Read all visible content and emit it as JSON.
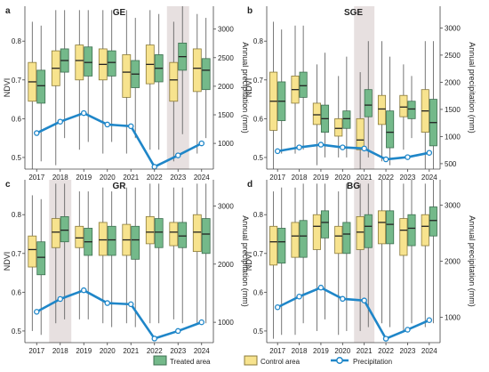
{
  "colors": {
    "treated_fill": "#74b98a",
    "treated_stroke": "#3d6f50",
    "control_fill": "#f7e38e",
    "control_stroke": "#8a7a3a",
    "precipitation": "#1f86c8",
    "shade": "#e7e0e0",
    "whisker": "#555555",
    "axis": "#444444",
    "text": "#222222"
  },
  "legend": {
    "treated": "Treated area",
    "control": "Control area",
    "precipitation": "Precipitation"
  },
  "chart_data": [
    {
      "type": "box",
      "panel_letter": "a",
      "title": "GE",
      "ylabel": "NDVI",
      "y2label": "Annual precipitation (mm)",
      "categories": [
        "2017",
        "2018",
        "2019",
        "2020",
        "2021",
        "2022",
        "2023",
        "2024"
      ],
      "ylim": [
        0.47,
        0.89
      ],
      "yticks": [
        0.5,
        0.6,
        0.7,
        0.8
      ],
      "y2lim": [
        550,
        3400
      ],
      "y2ticks": [
        1000,
        1500,
        2000,
        2500,
        3000
      ],
      "y2ticklabels": [
        "1000",
        "1500",
        "2000",
        "2500",
        "3000"
      ],
      "highlight": "2023",
      "control": [
        {
          "whislo": 0.47,
          "q1": 0.645,
          "med": 0.695,
          "q3": 0.745,
          "whishi": 0.85
        },
        {
          "whislo": 0.48,
          "q1": 0.685,
          "med": 0.73,
          "q3": 0.775,
          "whishi": 0.88
        },
        {
          "whislo": 0.52,
          "q1": 0.7,
          "med": 0.75,
          "q3": 0.79,
          "whishi": 0.88
        },
        {
          "whislo": 0.51,
          "q1": 0.7,
          "med": 0.74,
          "q3": 0.78,
          "whishi": 0.88
        },
        {
          "whislo": 0.51,
          "q1": 0.655,
          "med": 0.72,
          "q3": 0.765,
          "whishi": 0.88
        },
        {
          "whislo": 0.52,
          "q1": 0.69,
          "med": 0.74,
          "q3": 0.79,
          "whishi": 0.88
        },
        {
          "whislo": 0.49,
          "q1": 0.645,
          "med": 0.7,
          "q3": 0.745,
          "whishi": 0.85
        },
        {
          "whislo": 0.51,
          "q1": 0.67,
          "med": 0.73,
          "q3": 0.78,
          "whishi": 0.87
        }
      ],
      "treated": [
        {
          "whislo": 0.49,
          "q1": 0.64,
          "med": 0.685,
          "q3": 0.725,
          "whishi": 0.84
        },
        {
          "whislo": 0.55,
          "q1": 0.72,
          "med": 0.75,
          "q3": 0.78,
          "whishi": 0.88
        },
        {
          "whislo": 0.54,
          "q1": 0.71,
          "med": 0.745,
          "q3": 0.785,
          "whishi": 0.88
        },
        {
          "whislo": 0.54,
          "q1": 0.71,
          "med": 0.745,
          "q3": 0.775,
          "whishi": 0.88
        },
        {
          "whislo": 0.55,
          "q1": 0.68,
          "med": 0.715,
          "q3": 0.75,
          "whishi": 0.86
        },
        {
          "whislo": 0.52,
          "q1": 0.695,
          "med": 0.73,
          "q3": 0.765,
          "whishi": 0.87
        },
        {
          "whislo": 0.56,
          "q1": 0.725,
          "med": 0.76,
          "q3": 0.795,
          "whishi": 0.89
        },
        {
          "whislo": 0.55,
          "q1": 0.675,
          "med": 0.725,
          "q3": 0.755,
          "whishi": 0.86
        }
      ],
      "precipitation": [
        1180,
        1380,
        1530,
        1330,
        1300,
        590,
        790,
        1000
      ]
    },
    {
      "type": "box",
      "panel_letter": "b",
      "title": "SGE",
      "ylabel": "NDVI",
      "y2label": "Annual precipitation (mm)",
      "categories": [
        "2017",
        "2018",
        "2019",
        "2020",
        "2021",
        "2022",
        "2023",
        "2024"
      ],
      "ylim": [
        0.47,
        0.89
      ],
      "yticks": [
        0.5,
        0.6,
        0.7,
        0.8
      ],
      "y2lim": [
        400,
        3400
      ],
      "y2ticks": [
        500,
        1000,
        1500,
        2000,
        2500,
        3000
      ],
      "y2ticklabels": [
        "500",
        "1000",
        "1500",
        "2000",
        "2500",
        "3000"
      ],
      "highlight": "2021",
      "control": [
        {
          "whislo": 0.47,
          "q1": 0.57,
          "med": 0.645,
          "q3": 0.72,
          "whishi": 0.85
        },
        {
          "whislo": 0.51,
          "q1": 0.64,
          "med": 0.675,
          "q3": 0.71,
          "whishi": 0.84
        },
        {
          "whislo": 0.48,
          "q1": 0.585,
          "med": 0.61,
          "q3": 0.64,
          "whishi": 0.74
        },
        {
          "whislo": 0.5,
          "q1": 0.555,
          "med": 0.575,
          "q3": 0.6,
          "whishi": 0.71
        },
        {
          "whislo": 0.47,
          "q1": 0.52,
          "med": 0.545,
          "q3": 0.6,
          "whishi": 0.72
        },
        {
          "whislo": 0.49,
          "q1": 0.585,
          "med": 0.625,
          "q3": 0.66,
          "whishi": 0.8
        },
        {
          "whislo": 0.52,
          "q1": 0.605,
          "med": 0.63,
          "q3": 0.66,
          "whishi": 0.74
        },
        {
          "whislo": 0.47,
          "q1": 0.565,
          "med": 0.62,
          "q3": 0.675,
          "whishi": 0.8
        }
      ],
      "treated": [
        {
          "whislo": 0.51,
          "q1": 0.595,
          "med": 0.645,
          "q3": 0.695,
          "whishi": 0.83
        },
        {
          "whislo": 0.52,
          "q1": 0.655,
          "med": 0.685,
          "q3": 0.72,
          "whishi": 0.84
        },
        {
          "whislo": 0.5,
          "q1": 0.565,
          "med": 0.6,
          "q3": 0.635,
          "whishi": 0.77
        },
        {
          "whislo": 0.5,
          "q1": 0.575,
          "med": 0.6,
          "q3": 0.62,
          "whishi": 0.76
        },
        {
          "whislo": 0.5,
          "q1": 0.605,
          "med": 0.635,
          "q3": 0.675,
          "whishi": 0.8
        },
        {
          "whislo": 0.48,
          "q1": 0.525,
          "med": 0.565,
          "q3": 0.62,
          "whishi": 0.76
        },
        {
          "whislo": 0.55,
          "q1": 0.6,
          "med": 0.625,
          "q3": 0.645,
          "whishi": 0.71
        },
        {
          "whislo": 0.47,
          "q1": 0.53,
          "med": 0.59,
          "q3": 0.65,
          "whishi": 0.8
        }
      ],
      "precipitation": [
        730,
        800,
        850,
        800,
        780,
        580,
        620,
        700
      ]
    },
    {
      "type": "box",
      "panel_letter": "c",
      "title": "GR",
      "ylabel": "NDVI",
      "y2label": "Annual precipitation (mm)",
      "categories": [
        "2017",
        "2018",
        "2019",
        "2020",
        "2021",
        "2022",
        "2023",
        "2024"
      ],
      "ylim": [
        0.47,
        0.89
      ],
      "yticks": [
        0.5,
        0.6,
        0.7,
        0.8
      ],
      "y2lim": [
        650,
        3450
      ],
      "y2ticks": [
        1000,
        2000,
        3000
      ],
      "y2ticklabels": [
        "1000",
        "2000",
        "3000"
      ],
      "highlight": "2018",
      "control": [
        {
          "whislo": 0.5,
          "q1": 0.665,
          "med": 0.71,
          "q3": 0.745,
          "whishi": 0.85
        },
        {
          "whislo": 0.52,
          "q1": 0.715,
          "med": 0.755,
          "q3": 0.79,
          "whishi": 0.88
        },
        {
          "whislo": 0.53,
          "q1": 0.715,
          "med": 0.74,
          "q3": 0.77,
          "whishi": 0.86
        },
        {
          "whislo": 0.52,
          "q1": 0.695,
          "med": 0.735,
          "q3": 0.78,
          "whishi": 0.87
        },
        {
          "whislo": 0.52,
          "q1": 0.695,
          "med": 0.735,
          "q3": 0.775,
          "whishi": 0.87
        },
        {
          "whislo": 0.52,
          "q1": 0.725,
          "med": 0.755,
          "q3": 0.795,
          "whishi": 0.88
        },
        {
          "whislo": 0.53,
          "q1": 0.72,
          "med": 0.755,
          "q3": 0.78,
          "whishi": 0.87
        },
        {
          "whislo": 0.52,
          "q1": 0.705,
          "med": 0.755,
          "q3": 0.8,
          "whishi": 0.88
        }
      ],
      "treated": [
        {
          "whislo": 0.49,
          "q1": 0.645,
          "med": 0.69,
          "q3": 0.73,
          "whishi": 0.84
        },
        {
          "whislo": 0.53,
          "q1": 0.73,
          "med": 0.76,
          "q3": 0.795,
          "whishi": 0.88
        },
        {
          "whislo": 0.53,
          "q1": 0.695,
          "med": 0.73,
          "q3": 0.765,
          "whishi": 0.86
        },
        {
          "whislo": 0.51,
          "q1": 0.695,
          "med": 0.735,
          "q3": 0.77,
          "whishi": 0.86
        },
        {
          "whislo": 0.51,
          "q1": 0.685,
          "med": 0.735,
          "q3": 0.77,
          "whishi": 0.87
        },
        {
          "whislo": 0.52,
          "q1": 0.715,
          "med": 0.755,
          "q3": 0.79,
          "whishi": 0.88
        },
        {
          "whislo": 0.52,
          "q1": 0.715,
          "med": 0.745,
          "q3": 0.78,
          "whishi": 0.87
        },
        {
          "whislo": 0.52,
          "q1": 0.7,
          "med": 0.75,
          "q3": 0.79,
          "whishi": 0.88
        }
      ],
      "precipitation": [
        1180,
        1400,
        1550,
        1330,
        1310,
        720,
        850,
        1000
      ]
    },
    {
      "type": "box",
      "panel_letter": "d",
      "title": "BG",
      "ylabel": "NDVI",
      "y2label": "Annual precipitation (mm)",
      "categories": [
        "2017",
        "2018",
        "2019",
        "2020",
        "2021",
        "2022",
        "2023",
        "2024"
      ],
      "ylim": [
        0.47,
        0.89
      ],
      "yticks": [
        0.5,
        0.6,
        0.7,
        0.8
      ],
      "y2lim": [
        550,
        3450
      ],
      "y2ticks": [
        1000,
        2000,
        3000
      ],
      "y2ticklabels": [
        "1000",
        "2000",
        "3000"
      ],
      "highlight": "2021",
      "control": [
        {
          "whislo": 0.48,
          "q1": 0.67,
          "med": 0.73,
          "q3": 0.77,
          "whishi": 0.86
        },
        {
          "whislo": 0.49,
          "q1": 0.69,
          "med": 0.745,
          "q3": 0.78,
          "whishi": 0.87
        },
        {
          "whislo": 0.5,
          "q1": 0.71,
          "med": 0.77,
          "q3": 0.8,
          "whishi": 0.88
        },
        {
          "whislo": 0.49,
          "q1": 0.7,
          "med": 0.745,
          "q3": 0.77,
          "whishi": 0.86
        },
        {
          "whislo": 0.5,
          "q1": 0.71,
          "med": 0.755,
          "q3": 0.795,
          "whishi": 0.88
        },
        {
          "whislo": 0.52,
          "q1": 0.725,
          "med": 0.78,
          "q3": 0.81,
          "whishi": 0.89
        },
        {
          "whislo": 0.5,
          "q1": 0.695,
          "med": 0.76,
          "q3": 0.79,
          "whishi": 0.88
        },
        {
          "whislo": 0.51,
          "q1": 0.72,
          "med": 0.77,
          "q3": 0.8,
          "whishi": 0.88
        }
      ],
      "treated": [
        {
          "whislo": 0.49,
          "q1": 0.675,
          "med": 0.73,
          "q3": 0.765,
          "whishi": 0.87
        },
        {
          "whislo": 0.52,
          "q1": 0.69,
          "med": 0.745,
          "q3": 0.785,
          "whishi": 0.88
        },
        {
          "whislo": 0.53,
          "q1": 0.74,
          "med": 0.78,
          "q3": 0.81,
          "whishi": 0.88
        },
        {
          "whislo": 0.5,
          "q1": 0.7,
          "med": 0.75,
          "q3": 0.78,
          "whishi": 0.88
        },
        {
          "whislo": 0.51,
          "q1": 0.715,
          "med": 0.77,
          "q3": 0.8,
          "whishi": 0.88
        },
        {
          "whislo": 0.51,
          "q1": 0.725,
          "med": 0.775,
          "q3": 0.81,
          "whishi": 0.89
        },
        {
          "whislo": 0.52,
          "q1": 0.72,
          "med": 0.765,
          "q3": 0.8,
          "whishi": 0.89
        },
        {
          "whislo": 0.52,
          "q1": 0.745,
          "med": 0.785,
          "q3": 0.82,
          "whishi": 0.89
        }
      ],
      "precipitation": [
        1180,
        1370,
        1530,
        1330,
        1300,
        620,
        780,
        950
      ]
    }
  ]
}
